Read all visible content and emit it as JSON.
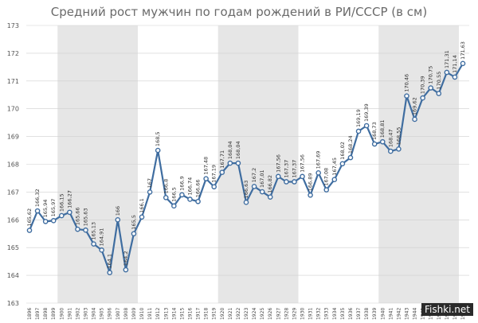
{
  "chart_data": {
    "type": "line",
    "title": "Средний рост мужчин по годам рождений в РИ/СССР (в см)",
    "xlabel": "",
    "ylabel": "",
    "ylim": [
      163,
      173
    ],
    "yticks": [
      163,
      164,
      165,
      166,
      167,
      168,
      169,
      170,
      171,
      172,
      173
    ],
    "grid": "horizontal",
    "x": [
      1896,
      1897,
      1898,
      1899,
      1900,
      1901,
      1902,
      1903,
      1904,
      1905,
      1906,
      1907,
      1908,
      1909,
      1910,
      1911,
      1912,
      1913,
      1914,
      1915,
      1916,
      1917,
      1918,
      1919,
      1920,
      1921,
      1922,
      1923,
      1924,
      1925,
      1926,
      1927,
      1928,
      1929,
      1930,
      1931,
      1932,
      1933,
      1934,
      1935,
      1936,
      1937,
      1938,
      1939,
      1940,
      1941,
      1942,
      1943,
      1944,
      1945,
      1946,
      1947,
      1948,
      1949,
      1950
    ],
    "series": [
      {
        "values": [
          165.62,
          166.32,
          165.94,
          165.97,
          166.15,
          166.27,
          165.66,
          165.63,
          165.13,
          164.91,
          164.1,
          166,
          164.2,
          165.5,
          166.1,
          167,
          168.5,
          166.8,
          166.5,
          166.9,
          166.74,
          166.66,
          167.48,
          167.19,
          167.71,
          168.04,
          168.04,
          166.63,
          167.2,
          167.01,
          166.82,
          167.56,
          167.37,
          167.37,
          167.56,
          166.89,
          167.69,
          167.08,
          167.45,
          168.02,
          168.24,
          169.19,
          169.39,
          168.73,
          168.81,
          168.47,
          168.55,
          170.46,
          169.62,
          170.39,
          170.75,
          170.55,
          171.31,
          171.14,
          171.63
        ],
        "labels": [
          "165,62",
          "166,32",
          "165,94",
          "165,97",
          "166,15",
          "166,27",
          "165,66",
          "165,63",
          "165,13",
          "164,91",
          "164,1",
          "166",
          "164,2",
          "165,5",
          "166,1",
          "167",
          "168,5",
          "166,8",
          "166,5",
          "166,9",
          "166,74",
          "166,66",
          "167,48",
          "167,19",
          "167,71",
          "168,04",
          "168,04",
          "166,63",
          "167,2",
          "167,01",
          "166,82",
          "167,56",
          "167,37",
          "167,37",
          "167,56",
          "166,89",
          "167,69",
          "167,08",
          "167,45",
          "168,02",
          "168,24",
          "169,19",
          "169,39",
          "168,73",
          "168,81",
          "168,47",
          "168,55",
          "170,46",
          "169,62",
          "170,39",
          "170,75",
          "170,55",
          "171,31",
          "171,14",
          "171,63"
        ],
        "color": "#3f6da0"
      }
    ],
    "band_color": "#e6e6e6"
  },
  "watermark": "Fishki.net"
}
